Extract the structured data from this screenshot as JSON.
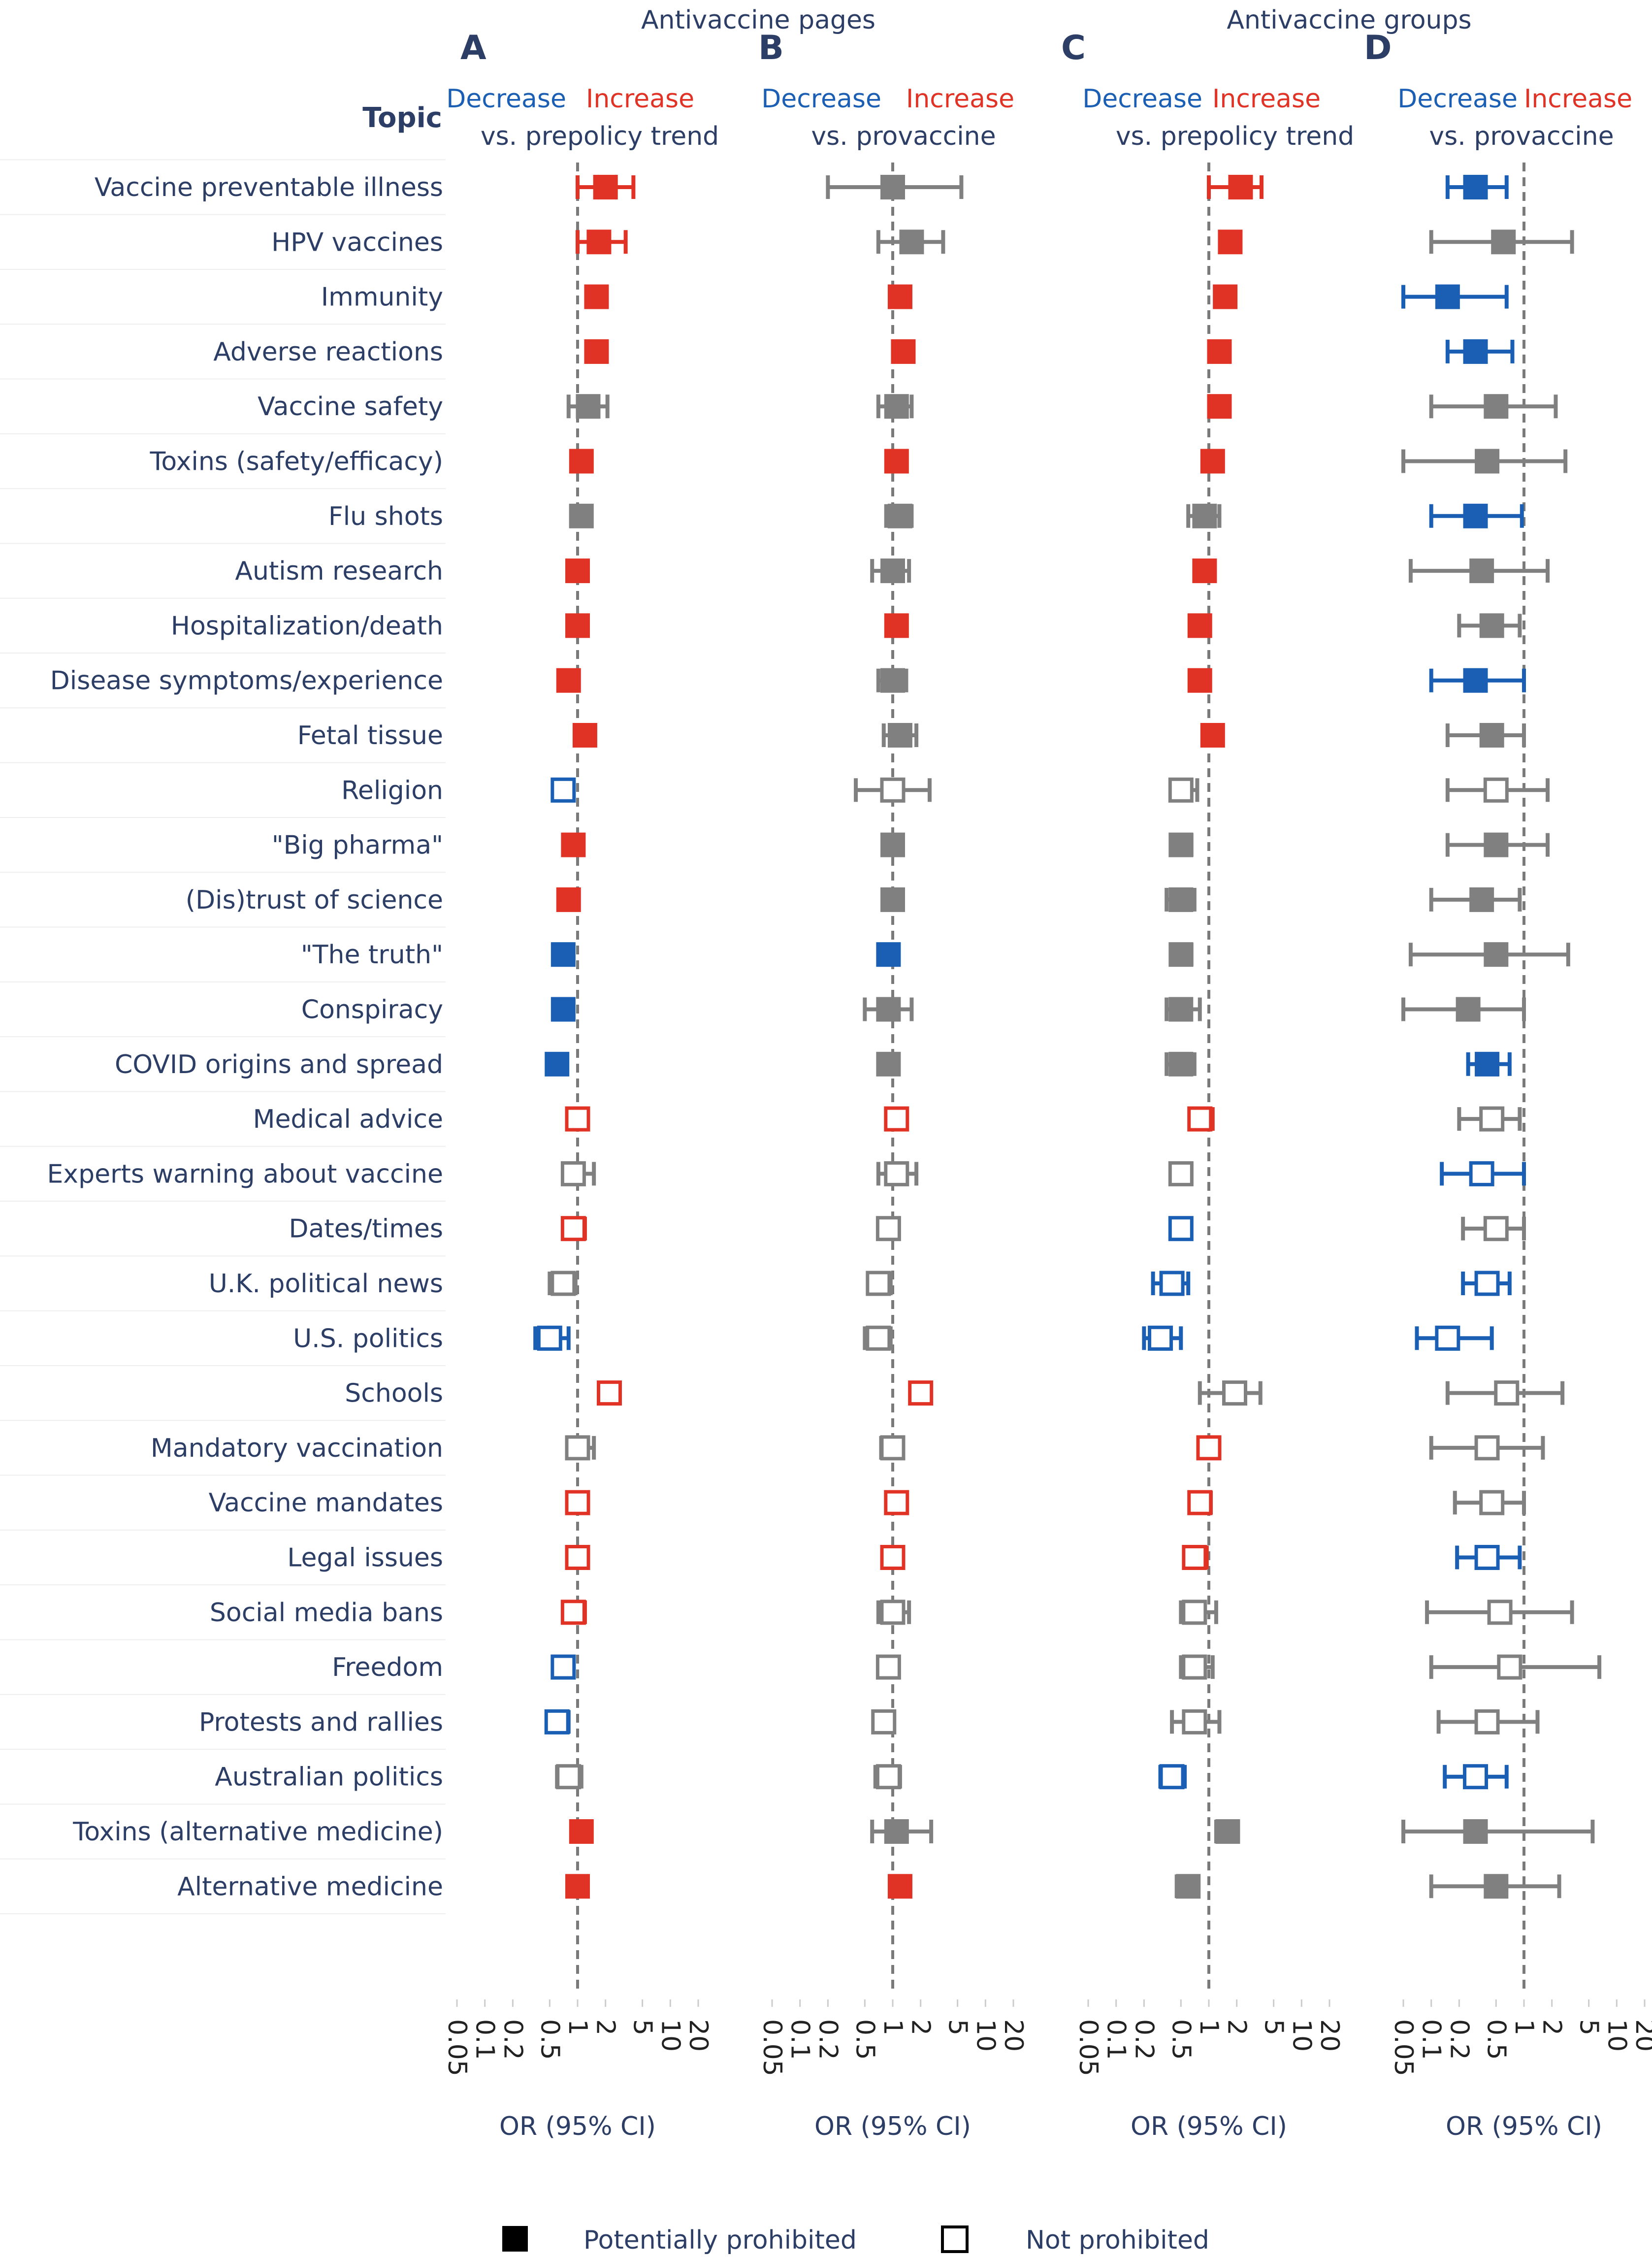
{
  "chart_data": {
    "type": "forest",
    "super_titles": [
      "Antivaccine pages",
      "Antivaccine groups"
    ],
    "topic_header": "Topic",
    "decrease_label": "Decrease",
    "increase_label": "Increase",
    "colors": {
      "decrease": "#1a5fb4",
      "increase": "#e03225",
      "neutral": "#808080",
      "text": "#2c3e66"
    },
    "x_scale": "log",
    "xlim": [
      0.05,
      20
    ],
    "reference_line": 1,
    "x_ticks": [
      "0.05",
      "0.1",
      "0.2",
      "0.5",
      "1",
      "2",
      "5",
      "10",
      "20"
    ],
    "xlabel": "OR (95% CI)",
    "topics": [
      "Vaccine preventable illness",
      "HPV vaccines",
      "Immunity",
      "Adverse reactions",
      "Vaccine safety",
      "Toxins (safety/efficacy)",
      "Flu shots",
      "Autism research",
      "Hospitalization/death",
      "Disease symptoms/experience",
      "Fetal tissue",
      "Religion",
      "\"Big pharma\"",
      "(Dis)trust of science",
      "\"The truth\"",
      "Conspiracy",
      "COVID origins and spread",
      "Medical advice",
      "Experts warning about vaccine",
      "Dates/times",
      "U.K. political news",
      "U.S. politics",
      "Schools",
      "Mandatory vaccination",
      "Vaccine mandates",
      "Legal issues",
      "Social media bans",
      "Freedom",
      "Protests and rallies",
      "Australian politics",
      "Toxins (alternative medicine)",
      "Alternative medicine"
    ],
    "prohibited": [
      true,
      true,
      true,
      true,
      true,
      true,
      true,
      true,
      true,
      true,
      true,
      false,
      true,
      true,
      true,
      true,
      true,
      false,
      false,
      false,
      false,
      false,
      false,
      false,
      false,
      false,
      false,
      false,
      false,
      false,
      true,
      true
    ],
    "panels": [
      {
        "letter": "A",
        "subtitle": "vs. prepolicy trend",
        "or": [
          2.0,
          1.7,
          1.6,
          1.6,
          1.3,
          1.1,
          1.1,
          1.0,
          1.0,
          0.8,
          1.2,
          0.7,
          0.9,
          0.8,
          0.7,
          0.7,
          0.6,
          1.0,
          0.9,
          0.9,
          0.7,
          0.5,
          2.2,
          1.0,
          1.0,
          1.0,
          0.9,
          0.7,
          0.6,
          0.8,
          1.1,
          1.0
        ],
        "lo": [
          1.0,
          1.0,
          1.35,
          1.35,
          0.8,
          0.95,
          0.85,
          0.9,
          0.85,
          0.7,
          1.0,
          0.6,
          0.8,
          0.7,
          0.6,
          0.6,
          0.5,
          0.9,
          0.7,
          0.8,
          0.5,
          0.35,
          1.8,
          0.8,
          0.9,
          0.85,
          0.8,
          0.6,
          0.5,
          0.6,
          0.95,
          0.9
        ],
        "hi": [
          4.0,
          3.3,
          1.9,
          1.9,
          2.1,
          1.3,
          1.3,
          1.2,
          1.2,
          1.0,
          1.5,
          0.9,
          1.1,
          0.95,
          0.85,
          0.85,
          0.75,
          1.3,
          1.5,
          1.2,
          0.95,
          0.8,
          2.7,
          1.5,
          1.3,
          1.3,
          1.2,
          0.9,
          0.8,
          1.1,
          1.3,
          1.2
        ],
        "sig": [
          "inc",
          "inc",
          "inc",
          "inc",
          "ns",
          "inc",
          "ns",
          "inc",
          "inc",
          "inc",
          "inc",
          "dec",
          "inc",
          "inc",
          "dec",
          "dec",
          "dec",
          "inc",
          "ns",
          "inc",
          "ns",
          "dec",
          "inc",
          "ns",
          "inc",
          "inc",
          "inc",
          "dec",
          "dec",
          "ns",
          "inc",
          "inc"
        ]
      },
      {
        "letter": "B",
        "subtitle": "vs. provaccine",
        "or": [
          1.0,
          1.6,
          1.2,
          1.3,
          1.1,
          1.1,
          1.2,
          1.0,
          1.1,
          1.0,
          1.2,
          1.0,
          1.0,
          1.0,
          0.9,
          0.9,
          0.9,
          1.1,
          1.1,
          0.9,
          0.7,
          0.7,
          2.0,
          1.0,
          1.1,
          1.0,
          1.0,
          0.9,
          0.8,
          0.9,
          1.1,
          1.2
        ],
        "lo": [
          0.2,
          0.7,
          0.95,
          1.05,
          0.7,
          0.9,
          0.85,
          0.6,
          0.9,
          0.7,
          0.8,
          0.4,
          0.8,
          0.8,
          0.7,
          0.5,
          0.7,
          0.9,
          0.7,
          0.7,
          0.55,
          0.5,
          1.6,
          0.75,
          0.9,
          0.8,
          0.7,
          0.7,
          0.65,
          0.65,
          0.6,
          1.0
        ],
        "hi": [
          5.5,
          3.5,
          1.5,
          1.6,
          1.6,
          1.4,
          1.6,
          1.5,
          1.4,
          1.4,
          1.8,
          2.5,
          1.2,
          1.2,
          1.1,
          1.6,
          1.1,
          1.4,
          1.8,
          1.1,
          0.95,
          0.95,
          2.5,
          1.3,
          1.4,
          1.3,
          1.5,
          1.1,
          1.0,
          1.2,
          2.6,
          1.5
        ],
        "sig": [
          "ns",
          "ns",
          "inc",
          "inc",
          "ns",
          "inc",
          "ns",
          "ns",
          "inc",
          "ns",
          "ns",
          "ns",
          "ns",
          "ns",
          "dec",
          "ns",
          "ns",
          "inc",
          "ns",
          "ns",
          "ns",
          "ns",
          "inc",
          "ns",
          "inc",
          "inc",
          "ns",
          "ns",
          "ns",
          "ns",
          "ns",
          "inc"
        ]
      },
      {
        "letter": "C",
        "subtitle": "vs. prepolicy trend",
        "or": [
          2.2,
          1.7,
          1.5,
          1.3,
          1.3,
          1.1,
          0.9,
          0.9,
          0.8,
          0.8,
          1.1,
          0.5,
          0.5,
          0.5,
          0.5,
          0.5,
          0.5,
          0.8,
          0.5,
          0.5,
          0.4,
          0.3,
          1.9,
          1.0,
          0.8,
          0.7,
          0.7,
          0.7,
          0.7,
          0.4,
          1.6,
          0.6
        ],
        "lo": [
          1.0,
          1.35,
          1.2,
          1.05,
          1.05,
          0.9,
          0.6,
          0.75,
          0.65,
          0.65,
          0.9,
          0.4,
          0.4,
          0.35,
          0.4,
          0.35,
          0.35,
          0.65,
          0.4,
          0.4,
          0.25,
          0.2,
          0.8,
          0.8,
          0.65,
          0.55,
          0.5,
          0.5,
          0.4,
          0.3,
          1.2,
          0.45
        ],
        "hi": [
          3.7,
          2.1,
          1.8,
          1.6,
          1.6,
          1.35,
          1.3,
          1.1,
          1.0,
          1.0,
          1.4,
          0.75,
          0.65,
          0.7,
          0.65,
          0.8,
          0.7,
          1.1,
          0.65,
          0.6,
          0.6,
          0.5,
          3.6,
          1.3,
          1.05,
          0.95,
          1.2,
          1.1,
          1.3,
          0.55,
          2.0,
          0.75
        ],
        "sig": [
          "inc",
          "inc",
          "inc",
          "inc",
          "inc",
          "inc",
          "ns",
          "inc",
          "inc",
          "inc",
          "inc",
          "ns",
          "ns",
          "ns",
          "ns",
          "ns",
          "ns",
          "inc",
          "ns",
          "dec",
          "dec",
          "dec",
          "ns",
          "inc",
          "inc",
          "inc",
          "ns",
          "ns",
          "ns",
          "dec",
          "ns",
          "ns"
        ]
      },
      {
        "letter": "D",
        "subtitle": "vs. provaccine",
        "or": [
          0.3,
          0.6,
          0.15,
          0.3,
          0.5,
          0.4,
          0.3,
          0.35,
          0.45,
          0.3,
          0.45,
          0.5,
          0.5,
          0.35,
          0.5,
          0.25,
          0.4,
          0.45,
          0.35,
          0.5,
          0.4,
          0.15,
          0.65,
          0.4,
          0.45,
          0.4,
          0.55,
          0.7,
          0.4,
          0.3,
          0.3,
          0.5
        ],
        "lo": [
          0.15,
          0.1,
          0.05,
          0.15,
          0.1,
          0.05,
          0.1,
          0.06,
          0.2,
          0.1,
          0.15,
          0.15,
          0.15,
          0.1,
          0.06,
          0.05,
          0.25,
          0.2,
          0.13,
          0.22,
          0.22,
          0.07,
          0.15,
          0.1,
          0.18,
          0.19,
          0.09,
          0.1,
          0.12,
          0.14,
          0.05,
          0.1
        ],
        "hi": [
          0.65,
          3.3,
          0.65,
          0.75,
          2.2,
          2.8,
          0.95,
          1.8,
          0.9,
          1.0,
          1.0,
          1.8,
          1.8,
          0.9,
          3.0,
          1.0,
          0.7,
          0.9,
          1.0,
          1.0,
          0.7,
          0.45,
          2.6,
          1.6,
          1.0,
          0.9,
          3.3,
          6.5,
          1.4,
          0.65,
          5.5,
          2.4
        ],
        "sig": [
          "dec",
          "ns",
          "dec",
          "dec",
          "ns",
          "ns",
          "dec",
          "ns",
          "ns",
          "dec",
          "ns",
          "ns",
          "ns",
          "ns",
          "ns",
          "ns",
          "dec",
          "ns",
          "dec",
          "ns",
          "dec",
          "dec",
          "ns",
          "ns",
          "ns",
          "dec",
          "ns",
          "ns",
          "ns",
          "dec",
          "ns",
          "ns"
        ]
      }
    ],
    "legend": {
      "filled_label": "Potentially prohibited",
      "open_label": "Not prohibited"
    }
  }
}
